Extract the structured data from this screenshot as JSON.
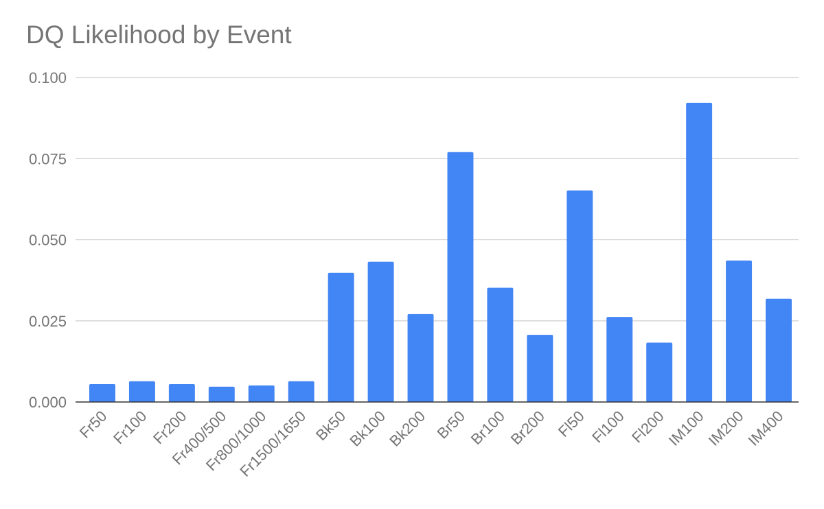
{
  "chart_data": {
    "type": "bar",
    "title": "DQ Likelihood by Event",
    "xlabel": "",
    "ylabel": "",
    "ylim": [
      0,
      0.1
    ],
    "yticks": [
      "0.000",
      "0.025",
      "0.050",
      "0.075",
      "0.100"
    ],
    "ytick_values": [
      0,
      0.025,
      0.05,
      0.075,
      0.1
    ],
    "grid": true,
    "bar_color": "#4285f4",
    "categories": [
      "Fr50",
      "Fr100",
      "Fr200",
      "Fr400/500",
      "Fr800/1000",
      "Fr1500/1650",
      "Bk50",
      "Bk100",
      "Bk200",
      "Br50",
      "Br100",
      "Br200",
      "Fl50",
      "Fl100",
      "Fl200",
      "IM100",
      "IM200",
      "IM400"
    ],
    "values": [
      0.0055,
      0.0064,
      0.0055,
      0.0047,
      0.0051,
      0.0064,
      0.0398,
      0.0432,
      0.0271,
      0.077,
      0.0352,
      0.0207,
      0.0652,
      0.0262,
      0.0183,
      0.0922,
      0.0436,
      0.0318
    ]
  }
}
